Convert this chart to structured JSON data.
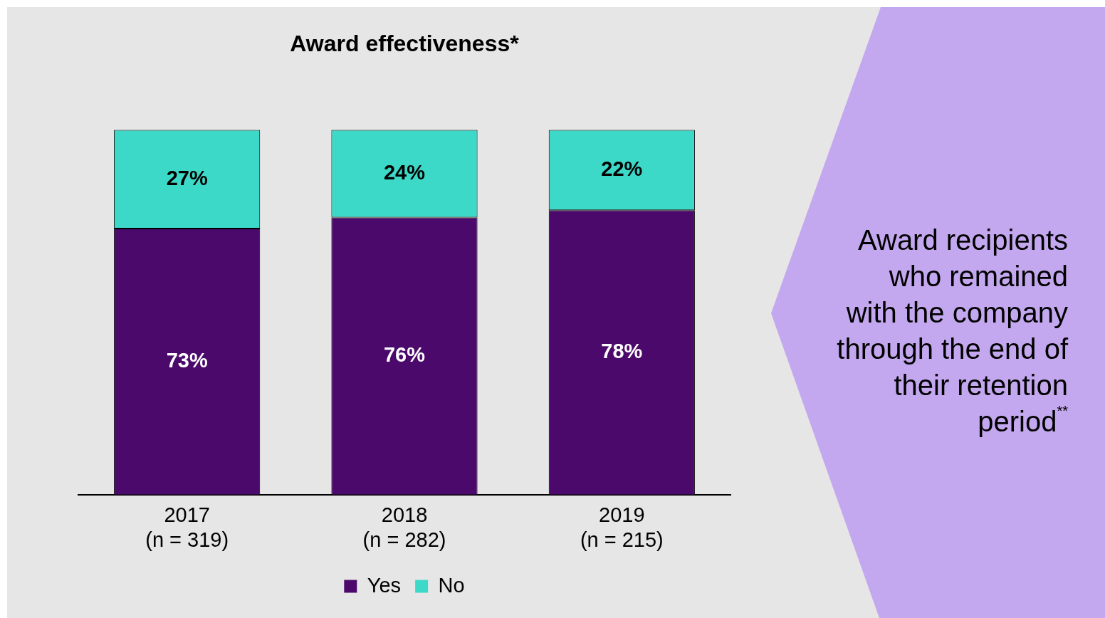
{
  "chart_data": {
    "type": "bar",
    "title": "Award effectiveness*",
    "stacked": true,
    "legend": "bottom",
    "grid": false,
    "categories": [
      "2017\n(n = 319)",
      "2018\n(n = 282)",
      "2019\n(n = 215)"
    ],
    "series": [
      {
        "name": "Yes",
        "color": "#4b0a6b",
        "values": [
          73,
          76,
          78
        ],
        "value_labels": [
          "73%",
          "76%",
          "78%"
        ]
      },
      {
        "name": "No",
        "color": "#3dd9c8",
        "values": [
          27,
          24,
          22
        ],
        "value_labels": [
          "27%",
          "24%",
          "22%"
        ]
      }
    ],
    "annotations": [
      "Award recipients who remained with the company through the end of their retention period$^{**}$"
    ]
  }
}
